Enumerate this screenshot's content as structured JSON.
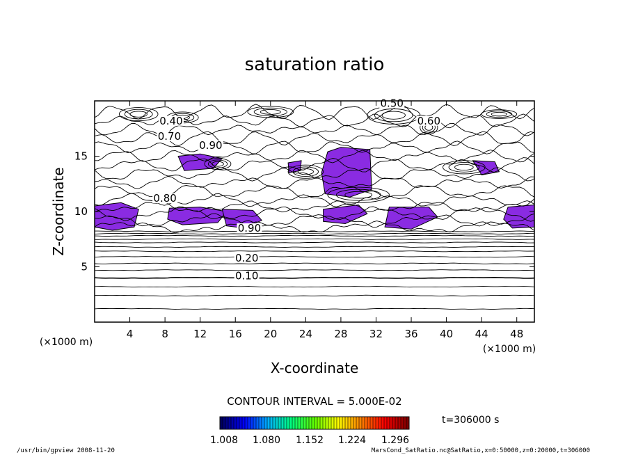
{
  "chart_data": {
    "type": "contour",
    "title": "saturation ratio",
    "xlabel": "X-coordinate",
    "ylabel": "Z-coordinate",
    "x_unit": "(×1000 m)",
    "z_unit": "(×1000 m)",
    "xlim": [
      0,
      50
    ],
    "ylim": [
      0,
      20
    ],
    "x_ticks": [
      "4",
      "8",
      "12",
      "16",
      "20",
      "24",
      "28",
      "32",
      "36",
      "40",
      "44",
      "48"
    ],
    "y_ticks": [
      "5",
      "10",
      "15"
    ],
    "contour_interval_text": "CONTOUR INTERVAL = 5.000E-02",
    "contour_labels": [
      {
        "text": "0.10",
        "x": 17.3,
        "z": 4.0
      },
      {
        "text": "0.20",
        "x": 17.3,
        "z": 5.6
      },
      {
        "text": "0.40",
        "x": 8.7,
        "z": 18.0
      },
      {
        "text": "0.70",
        "x": 8.5,
        "z": 16.6
      },
      {
        "text": "0.90",
        "x": 13.2,
        "z": 15.8
      },
      {
        "text": "0.50",
        "x": 33.8,
        "z": 19.6
      },
      {
        "text": "0.60",
        "x": 38.0,
        "z": 18.0
      },
      {
        "text": "0.80",
        "x": 8.0,
        "z": 11.0
      },
      {
        "text": "0.90",
        "x": 17.6,
        "z": 8.3
      }
    ],
    "shaded_regions_value": "saturation ratio > 1.0",
    "colorbar": {
      "ticks": [
        "1.008",
        "1.080",
        "1.152",
        "1.224",
        "1.296"
      ],
      "colors": [
        "#000060",
        "#0000ff",
        "#00b0ff",
        "#00ff80",
        "#60ff00",
        "#ffff00",
        "#ff8000",
        "#ff0000",
        "#800000"
      ]
    },
    "time_label": "t=306000 s",
    "shade_color": "#8a2be2"
  },
  "footer": {
    "left": "/usr/bin/gpview   2008-11-20",
    "right": "MarsCond_SatRatio.nc@SatRatio,x=0:50000,z=0:20000,t=306000"
  }
}
